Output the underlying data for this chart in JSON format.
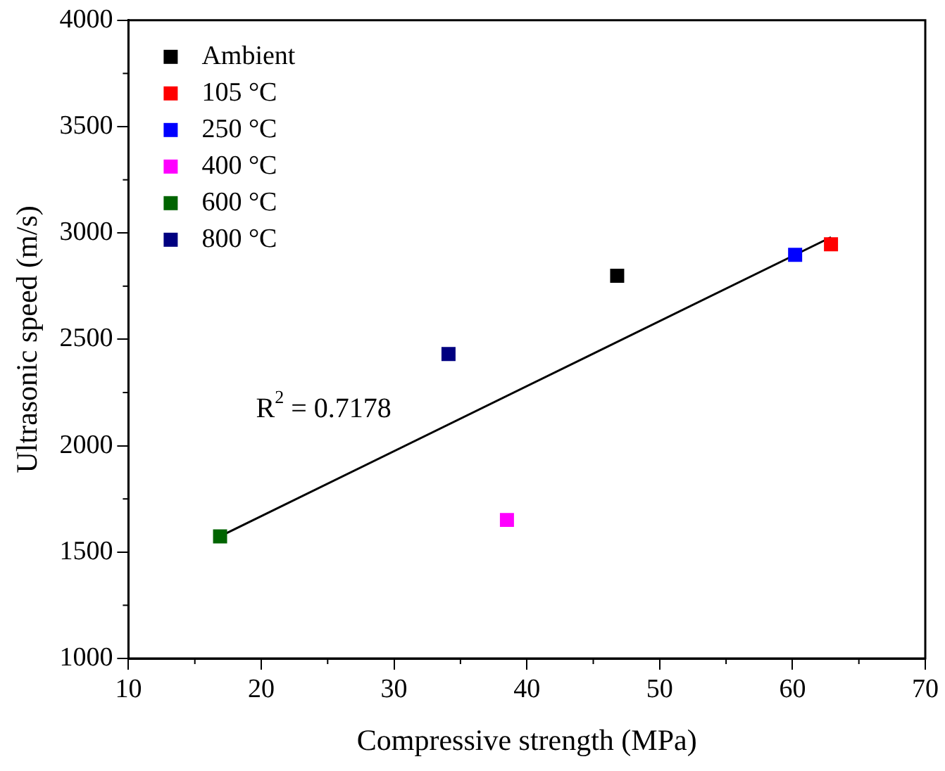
{
  "chart_data": {
    "type": "scatter",
    "xlabel": "Compressive strength (MPa)",
    "ylabel": "Ultrasonic speed (m/s)",
    "xlim": [
      10,
      70
    ],
    "xticks": [
      10,
      20,
      30,
      40,
      50,
      60,
      70
    ],
    "ylim": [
      1000,
      4000
    ],
    "yticks": [
      1000,
      1500,
      2000,
      2500,
      3000,
      3500,
      4000
    ],
    "grid": false,
    "legend": "top left",
    "marker": "square",
    "series": [
      {
        "name": "Ambient",
        "color": "#000000",
        "x": [
          46.8
        ],
        "values": [
          2799
        ]
      },
      {
        "name": "105 °C",
        "color": "#ff0000",
        "x": [
          62.9
        ],
        "values": [
          2947
        ]
      },
      {
        "name": "250 °C",
        "color": "#0000ff",
        "x": [
          60.2
        ],
        "values": [
          2897
        ]
      },
      {
        "name": "400 °C",
        "color": "#ff00ff",
        "x": [
          38.5
        ],
        "values": [
          1651
        ]
      },
      {
        "name": "600 °C",
        "color": "#006400",
        "x": [
          16.9
        ],
        "values": [
          1574
        ]
      },
      {
        "name": "800 °C",
        "color": "#000080",
        "x": [
          34.1
        ],
        "values": [
          2431
        ]
      },
      {
        "type": "line",
        "color": "#000000",
        "marker": "none",
        "x": [
          16.9,
          62.9
        ],
        "values": [
          1574,
          2980
        ]
      }
    ],
    "annotations": [
      "R$^{2}$ = 0.7178"
    ]
  }
}
